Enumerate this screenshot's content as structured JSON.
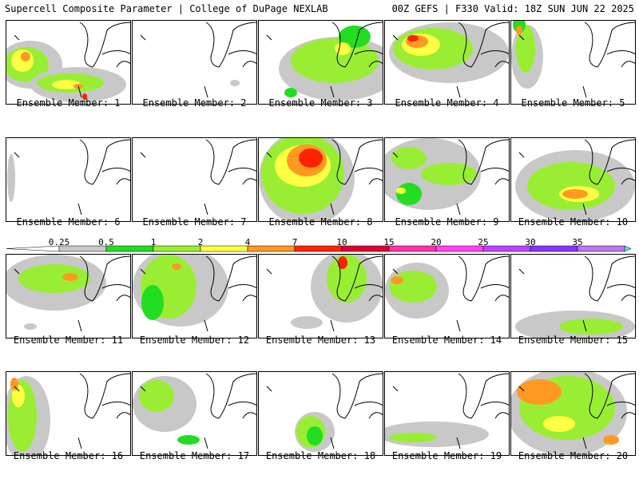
{
  "header": {
    "title": "Supercell Composite Parameter | College of DuPage NEXLAB",
    "run_info": "00Z GEFS | F330 Valid: 18Z SUN JUN 22 2025"
  },
  "colorbar": {
    "levels": [
      {
        "label": "0.25",
        "color": "#c8c8c8"
      },
      {
        "label": "0.5",
        "color": "#22dd22"
      },
      {
        "label": "1",
        "color": "#99ee33"
      },
      {
        "label": "2",
        "color": "#ffff44"
      },
      {
        "label": "4",
        "color": "#ff9922"
      },
      {
        "label": "7",
        "color": "#ff2200"
      },
      {
        "label": "10",
        "color": "#dd0033"
      },
      {
        "label": "15",
        "color": "#ff33aa"
      },
      {
        "label": "20",
        "color": "#ff44ee"
      },
      {
        "label": "25",
        "color": "#bb44ff"
      },
      {
        "label": "30",
        "color": "#8833ff"
      },
      {
        "label": "35",
        "color": "#bb77ee"
      }
    ],
    "end_color": "#44eeee"
  },
  "panels": [
    {
      "label": "Ensemble Member: 1"
    },
    {
      "label": "Ensemble Member: 2"
    },
    {
      "label": "Ensemble Member: 3"
    },
    {
      "label": "Ensemble Member: 4"
    },
    {
      "label": "Ensemble Member: 5"
    },
    {
      "label": "Ensemble Member: 6"
    },
    {
      "label": "Ensemble Member: 7"
    },
    {
      "label": "Ensemble Member: 8"
    },
    {
      "label": "Ensemble Member: 9"
    },
    {
      "label": "Ensemble Member: 10"
    },
    {
      "label": "Ensemble Member: 11"
    },
    {
      "label": "Ensemble Member: 12"
    },
    {
      "label": "Ensemble Member: 13"
    },
    {
      "label": "Ensemble Member: 14"
    },
    {
      "label": "Ensemble Member: 15"
    },
    {
      "label": "Ensemble Member: 16"
    },
    {
      "label": "Ensemble Member: 17"
    },
    {
      "label": "Ensemble Member: 18"
    },
    {
      "label": "Ensemble Member: 19"
    },
    {
      "label": "Ensemble Member: 20"
    }
  ]
}
